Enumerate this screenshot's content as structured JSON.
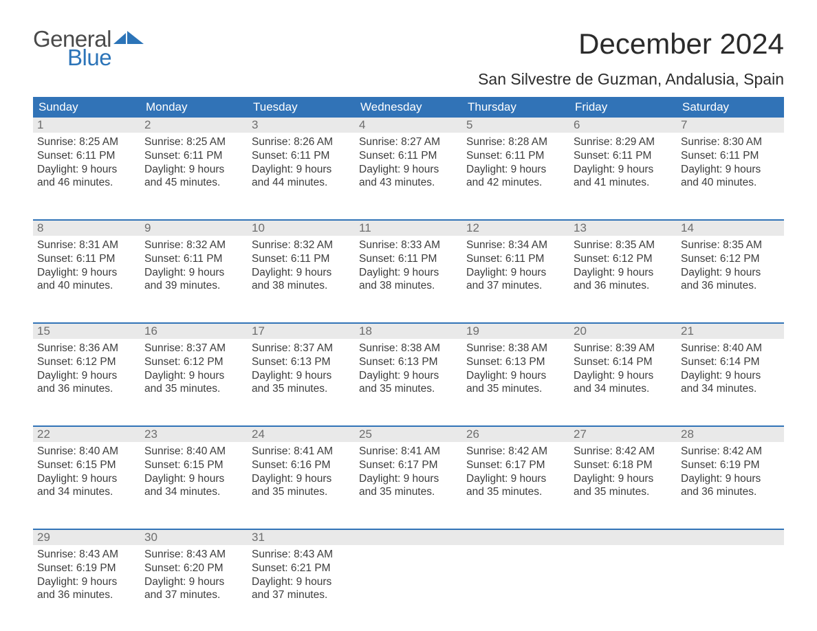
{
  "logo": {
    "text1": "General",
    "text2": "Blue",
    "brand_color": "#2c74b8",
    "text_color": "#4a4a4a"
  },
  "header": {
    "month_title": "December 2024",
    "location": "San Silvestre de Guzman, Andalusia, Spain"
  },
  "colors": {
    "header_bg": "#3173b7",
    "header_text": "#ffffff",
    "daynum_bg": "#e9e9e9",
    "daynum_text": "#6d6d6d",
    "body_text": "#3c3c3c",
    "week_border": "#3173b7",
    "page_bg": "#ffffff"
  },
  "weekdays": [
    "Sunday",
    "Monday",
    "Tuesday",
    "Wednesday",
    "Thursday",
    "Friday",
    "Saturday"
  ],
  "weeks": [
    [
      {
        "n": "1",
        "sr": "Sunrise: 8:25 AM",
        "ss": "Sunset: 6:11 PM",
        "d1": "Daylight: 9 hours",
        "d2": "and 46 minutes."
      },
      {
        "n": "2",
        "sr": "Sunrise: 8:25 AM",
        "ss": "Sunset: 6:11 PM",
        "d1": "Daylight: 9 hours",
        "d2": "and 45 minutes."
      },
      {
        "n": "3",
        "sr": "Sunrise: 8:26 AM",
        "ss": "Sunset: 6:11 PM",
        "d1": "Daylight: 9 hours",
        "d2": "and 44 minutes."
      },
      {
        "n": "4",
        "sr": "Sunrise: 8:27 AM",
        "ss": "Sunset: 6:11 PM",
        "d1": "Daylight: 9 hours",
        "d2": "and 43 minutes."
      },
      {
        "n": "5",
        "sr": "Sunrise: 8:28 AM",
        "ss": "Sunset: 6:11 PM",
        "d1": "Daylight: 9 hours",
        "d2": "and 42 minutes."
      },
      {
        "n": "6",
        "sr": "Sunrise: 8:29 AM",
        "ss": "Sunset: 6:11 PM",
        "d1": "Daylight: 9 hours",
        "d2": "and 41 minutes."
      },
      {
        "n": "7",
        "sr": "Sunrise: 8:30 AM",
        "ss": "Sunset: 6:11 PM",
        "d1": "Daylight: 9 hours",
        "d2": "and 40 minutes."
      }
    ],
    [
      {
        "n": "8",
        "sr": "Sunrise: 8:31 AM",
        "ss": "Sunset: 6:11 PM",
        "d1": "Daylight: 9 hours",
        "d2": "and 40 minutes."
      },
      {
        "n": "9",
        "sr": "Sunrise: 8:32 AM",
        "ss": "Sunset: 6:11 PM",
        "d1": "Daylight: 9 hours",
        "d2": "and 39 minutes."
      },
      {
        "n": "10",
        "sr": "Sunrise: 8:32 AM",
        "ss": "Sunset: 6:11 PM",
        "d1": "Daylight: 9 hours",
        "d2": "and 38 minutes."
      },
      {
        "n": "11",
        "sr": "Sunrise: 8:33 AM",
        "ss": "Sunset: 6:11 PM",
        "d1": "Daylight: 9 hours",
        "d2": "and 38 minutes."
      },
      {
        "n": "12",
        "sr": "Sunrise: 8:34 AM",
        "ss": "Sunset: 6:11 PM",
        "d1": "Daylight: 9 hours",
        "d2": "and 37 minutes."
      },
      {
        "n": "13",
        "sr": "Sunrise: 8:35 AM",
        "ss": "Sunset: 6:12 PM",
        "d1": "Daylight: 9 hours",
        "d2": "and 36 minutes."
      },
      {
        "n": "14",
        "sr": "Sunrise: 8:35 AM",
        "ss": "Sunset: 6:12 PM",
        "d1": "Daylight: 9 hours",
        "d2": "and 36 minutes."
      }
    ],
    [
      {
        "n": "15",
        "sr": "Sunrise: 8:36 AM",
        "ss": "Sunset: 6:12 PM",
        "d1": "Daylight: 9 hours",
        "d2": "and 36 minutes."
      },
      {
        "n": "16",
        "sr": "Sunrise: 8:37 AM",
        "ss": "Sunset: 6:12 PM",
        "d1": "Daylight: 9 hours",
        "d2": "and 35 minutes."
      },
      {
        "n": "17",
        "sr": "Sunrise: 8:37 AM",
        "ss": "Sunset: 6:13 PM",
        "d1": "Daylight: 9 hours",
        "d2": "and 35 minutes."
      },
      {
        "n": "18",
        "sr": "Sunrise: 8:38 AM",
        "ss": "Sunset: 6:13 PM",
        "d1": "Daylight: 9 hours",
        "d2": "and 35 minutes."
      },
      {
        "n": "19",
        "sr": "Sunrise: 8:38 AM",
        "ss": "Sunset: 6:13 PM",
        "d1": "Daylight: 9 hours",
        "d2": "and 35 minutes."
      },
      {
        "n": "20",
        "sr": "Sunrise: 8:39 AM",
        "ss": "Sunset: 6:14 PM",
        "d1": "Daylight: 9 hours",
        "d2": "and 34 minutes."
      },
      {
        "n": "21",
        "sr": "Sunrise: 8:40 AM",
        "ss": "Sunset: 6:14 PM",
        "d1": "Daylight: 9 hours",
        "d2": "and 34 minutes."
      }
    ],
    [
      {
        "n": "22",
        "sr": "Sunrise: 8:40 AM",
        "ss": "Sunset: 6:15 PM",
        "d1": "Daylight: 9 hours",
        "d2": "and 34 minutes."
      },
      {
        "n": "23",
        "sr": "Sunrise: 8:40 AM",
        "ss": "Sunset: 6:15 PM",
        "d1": "Daylight: 9 hours",
        "d2": "and 34 minutes."
      },
      {
        "n": "24",
        "sr": "Sunrise: 8:41 AM",
        "ss": "Sunset: 6:16 PM",
        "d1": "Daylight: 9 hours",
        "d2": "and 35 minutes."
      },
      {
        "n": "25",
        "sr": "Sunrise: 8:41 AM",
        "ss": "Sunset: 6:17 PM",
        "d1": "Daylight: 9 hours",
        "d2": "and 35 minutes."
      },
      {
        "n": "26",
        "sr": "Sunrise: 8:42 AM",
        "ss": "Sunset: 6:17 PM",
        "d1": "Daylight: 9 hours",
        "d2": "and 35 minutes."
      },
      {
        "n": "27",
        "sr": "Sunrise: 8:42 AM",
        "ss": "Sunset: 6:18 PM",
        "d1": "Daylight: 9 hours",
        "d2": "and 35 minutes."
      },
      {
        "n": "28",
        "sr": "Sunrise: 8:42 AM",
        "ss": "Sunset: 6:19 PM",
        "d1": "Daylight: 9 hours",
        "d2": "and 36 minutes."
      }
    ],
    [
      {
        "n": "29",
        "sr": "Sunrise: 8:43 AM",
        "ss": "Sunset: 6:19 PM",
        "d1": "Daylight: 9 hours",
        "d2": "and 36 minutes."
      },
      {
        "n": "30",
        "sr": "Sunrise: 8:43 AM",
        "ss": "Sunset: 6:20 PM",
        "d1": "Daylight: 9 hours",
        "d2": "and 37 minutes."
      },
      {
        "n": "31",
        "sr": "Sunrise: 8:43 AM",
        "ss": "Sunset: 6:21 PM",
        "d1": "Daylight: 9 hours",
        "d2": "and 37 minutes."
      },
      {
        "n": "",
        "empty": true
      },
      {
        "n": "",
        "empty": true
      },
      {
        "n": "",
        "empty": true
      },
      {
        "n": "",
        "empty": true
      }
    ]
  ]
}
